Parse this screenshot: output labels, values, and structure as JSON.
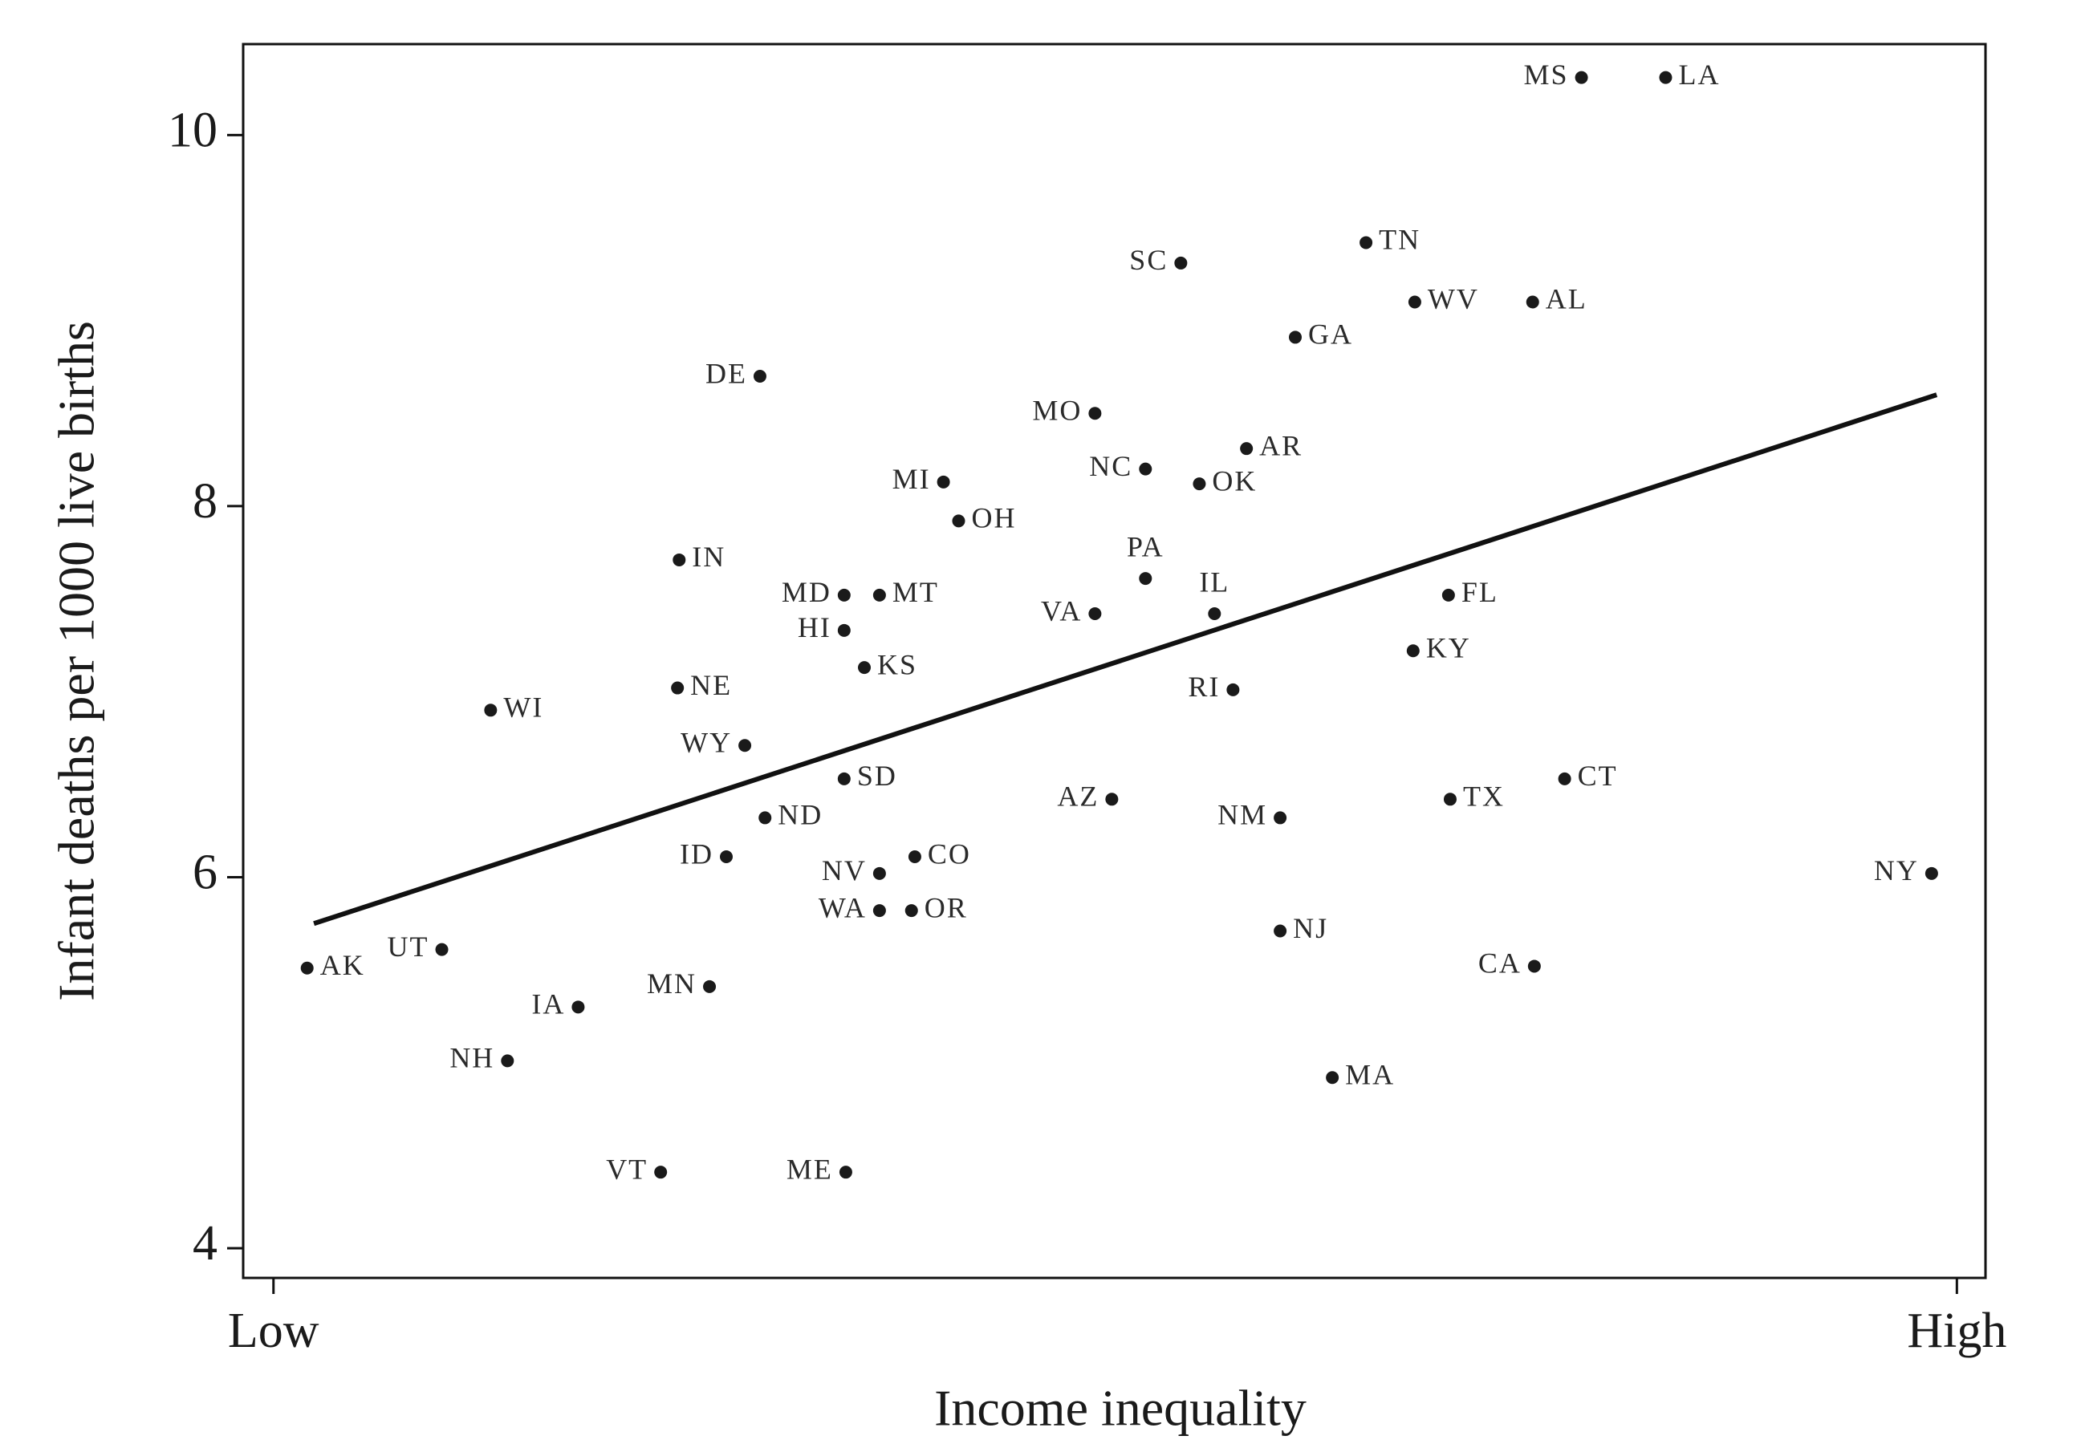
{
  "chart_data": {
    "type": "scatter",
    "x_label": "Income inequality",
    "y_label": "Infant deaths per 1000 live births",
    "xlim": [
      -0.018,
      1.017
    ],
    "xticks": [
      {
        "value": 0,
        "label": "Low"
      },
      {
        "value": 1,
        "label": "High"
      }
    ],
    "ylim": [
      3.84,
      10.49
    ],
    "yticks": [
      4,
      6,
      8,
      10
    ],
    "color": "#1a1a1a",
    "labels": [
      "MS",
      "LA",
      "TN",
      "SC",
      "WV",
      "AL",
      "GA",
      "DE",
      "MO",
      "AR",
      "NC",
      "OK",
      "MI",
      "OH",
      "IN",
      "PA",
      "MD",
      "MT",
      "FL",
      "VA",
      "IL",
      "HI",
      "KY",
      "KS",
      "NE",
      "RI",
      "WI",
      "WY",
      "SD",
      "CT",
      "AZ",
      "TX",
      "ND",
      "NM",
      "ID",
      "CO",
      "NV",
      "NY",
      "WA",
      "OR",
      "NJ",
      "UT",
      "AK",
      "CA",
      "MN",
      "IA",
      "NH",
      "MA",
      "VT",
      "ME"
    ],
    "x": [
      0.777,
      0.827,
      0.649,
      0.539,
      0.678,
      0.748,
      0.607,
      0.289,
      0.488,
      0.578,
      0.518,
      0.55,
      0.398,
      0.407,
      0.241,
      0.518,
      0.339,
      0.36,
      0.698,
      0.488,
      0.559,
      0.339,
      0.677,
      0.351,
      0.24,
      0.57,
      0.129,
      0.28,
      0.339,
      0.767,
      0.498,
      0.699,
      0.292,
      0.598,
      0.269,
      0.381,
      0.36,
      0.985,
      0.36,
      0.379,
      0.598,
      0.1,
      0.02,
      0.749,
      0.259,
      0.181,
      0.139,
      0.629,
      0.23,
      0.34
    ],
    "y": [
      10.31,
      10.31,
      9.42,
      9.31,
      9.1,
      9.1,
      8.91,
      8.7,
      8.5,
      8.31,
      8.2,
      8.12,
      8.13,
      7.92,
      7.71,
      7.61,
      7.52,
      7.52,
      7.52,
      7.42,
      7.42,
      7.33,
      7.22,
      7.13,
      7.02,
      7.01,
      6.9,
      6.71,
      6.53,
      6.53,
      6.42,
      6.42,
      6.32,
      6.32,
      6.11,
      6.11,
      6.02,
      6.02,
      5.82,
      5.82,
      5.71,
      5.61,
      5.51,
      5.52,
      5.41,
      5.3,
      5.01,
      4.92,
      4.41,
      4.41
    ],
    "fit_line": {
      "x": [
        0.024,
        0.988
      ],
      "y": [
        5.75,
        8.6
      ]
    }
  }
}
